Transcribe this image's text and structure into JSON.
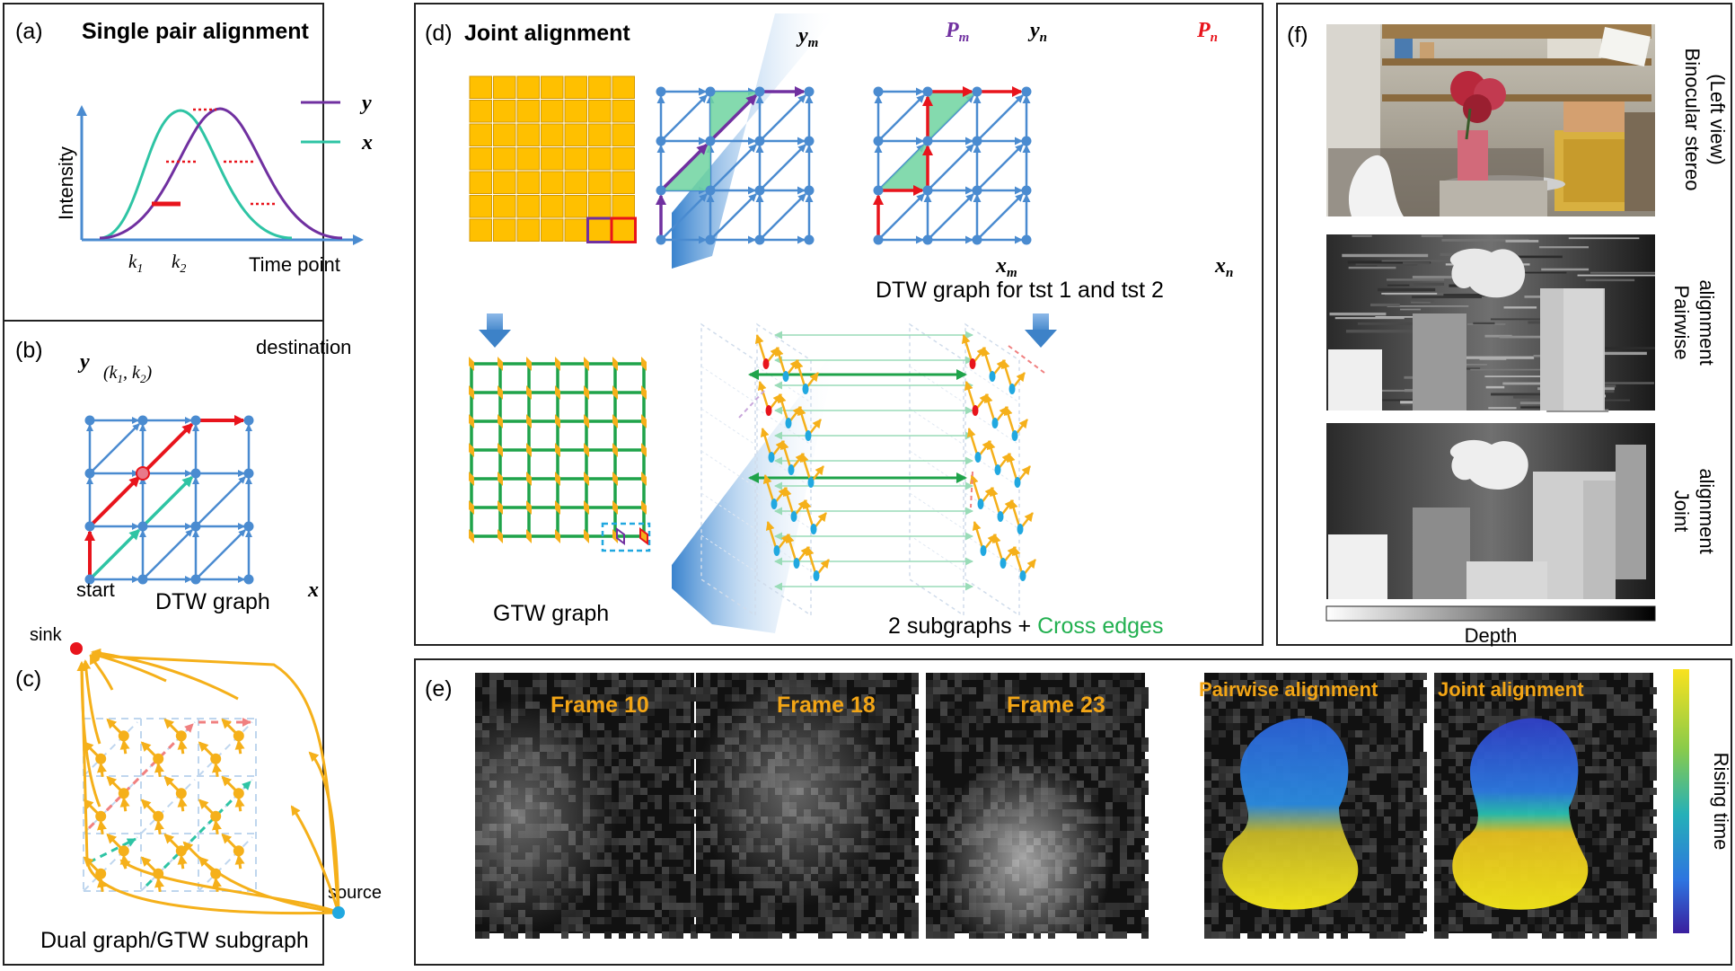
{
  "colors": {
    "blue": "#4A8BD0",
    "purple": "#7030A0",
    "teal": "#2EC4A4",
    "red": "#E8141C",
    "orange": "#F5B01A",
    "yellow_cell": "#FFC000",
    "green_edge": "#1FA34A",
    "cross_edge": "#22B050",
    "light_blue": "#BFD6EE",
    "pink": "#F08080"
  },
  "panel_a": {
    "letter": "(a)",
    "title": "Single pair alignment",
    "ylabel": "Intensity",
    "xlabel": "Time point",
    "legend_y": "y",
    "legend_x": "x",
    "k1": "k",
    "k1_sub": "1",
    "k2": "k",
    "k2_sub": "2"
  },
  "panel_b": {
    "letter": "(b)",
    "y_label": "y",
    "x_label": "x",
    "destination": "destination",
    "start": "start",
    "caption": "DTW graph",
    "node_label": "(k",
    "node_label_1": "1",
    "node_label_mid": ", k",
    "node_label_2": "2",
    "node_label_end": ")"
  },
  "panel_c": {
    "letter": "(c)",
    "sink": "sink",
    "source": "source",
    "caption": "Dual graph/GTW subgraph"
  },
  "panel_d": {
    "letter": "(d)",
    "title": "Joint alignment",
    "ym": "y",
    "ym_sub": "m",
    "yn": "y",
    "yn_sub": "n",
    "pm": "P",
    "pm_sub": "m",
    "pn": "P",
    "pn_sub": "n",
    "xm": "x",
    "xm_sub": "m",
    "xn": "x",
    "xn_sub": "n",
    "dtw_caption": "DTW graph for tst 1 and tst 2",
    "gtw_caption": "GTW graph",
    "sub_caption_a": "2 subgraphs + ",
    "sub_caption_b": "Cross edges"
  },
  "panel_e": {
    "letter": "(e)",
    "frame1": "Frame 10",
    "frame2": "Frame 18",
    "frame3": "Frame 23",
    "pairwise": "Pairwise alignment",
    "joint": "Joint alignment",
    "colorbar_label": "Rising time"
  },
  "panel_f": {
    "letter": "(f)",
    "label1": "Binocular stereo (Left view)",
    "label1a": "Binocular stereo",
    "label1b": "(Left view)",
    "label2a": "Pairwise",
    "label2b": "alignment",
    "label3a": "Joint",
    "label3b": "alignment",
    "depth_label": "Depth"
  }
}
